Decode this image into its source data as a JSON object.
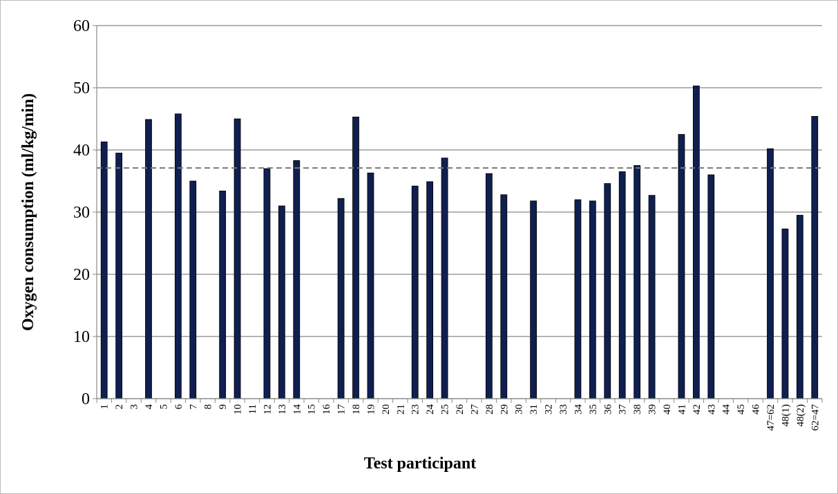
{
  "chart_data": {
    "type": "bar",
    "y_label": "Oxygen consumption  (ml/kg/min)",
    "x_label": "Test participant",
    "categories": [
      "1",
      "2",
      "3",
      "4",
      "5",
      "6",
      "7",
      "8",
      "9",
      "10",
      "11",
      "12",
      "13",
      "14",
      "15",
      "16",
      "17",
      "18",
      "19",
      "20",
      "21",
      "23",
      "24",
      "25",
      "26",
      "27",
      "28",
      "29",
      "30",
      "31",
      "32",
      "33",
      "34",
      "35",
      "36",
      "37",
      "38",
      "39",
      "40",
      "41",
      "42",
      "43",
      "44",
      "45",
      "46",
      "47=62",
      "48(1)",
      "48(2)",
      "62=47"
    ],
    "values": [
      41.3,
      39.5,
      null,
      44.9,
      null,
      45.8,
      35.0,
      null,
      33.4,
      45.0,
      null,
      37.0,
      31.0,
      38.3,
      null,
      null,
      32.2,
      45.3,
      36.3,
      null,
      null,
      34.2,
      34.9,
      38.7,
      null,
      null,
      36.2,
      32.8,
      null,
      31.8,
      null,
      null,
      32.0,
      31.8,
      34.6,
      36.5,
      37.5,
      32.7,
      null,
      42.5,
      50.3,
      36.0,
      null,
      null,
      null,
      40.2,
      27.3,
      29.5,
      45.4
    ],
    "color": "#0f1f4f",
    "reference_line": 37.1,
    "ylim": [
      0,
      60
    ],
    "yticks": [
      0,
      10,
      20,
      30,
      40,
      50,
      60
    ],
    "grid": true
  }
}
